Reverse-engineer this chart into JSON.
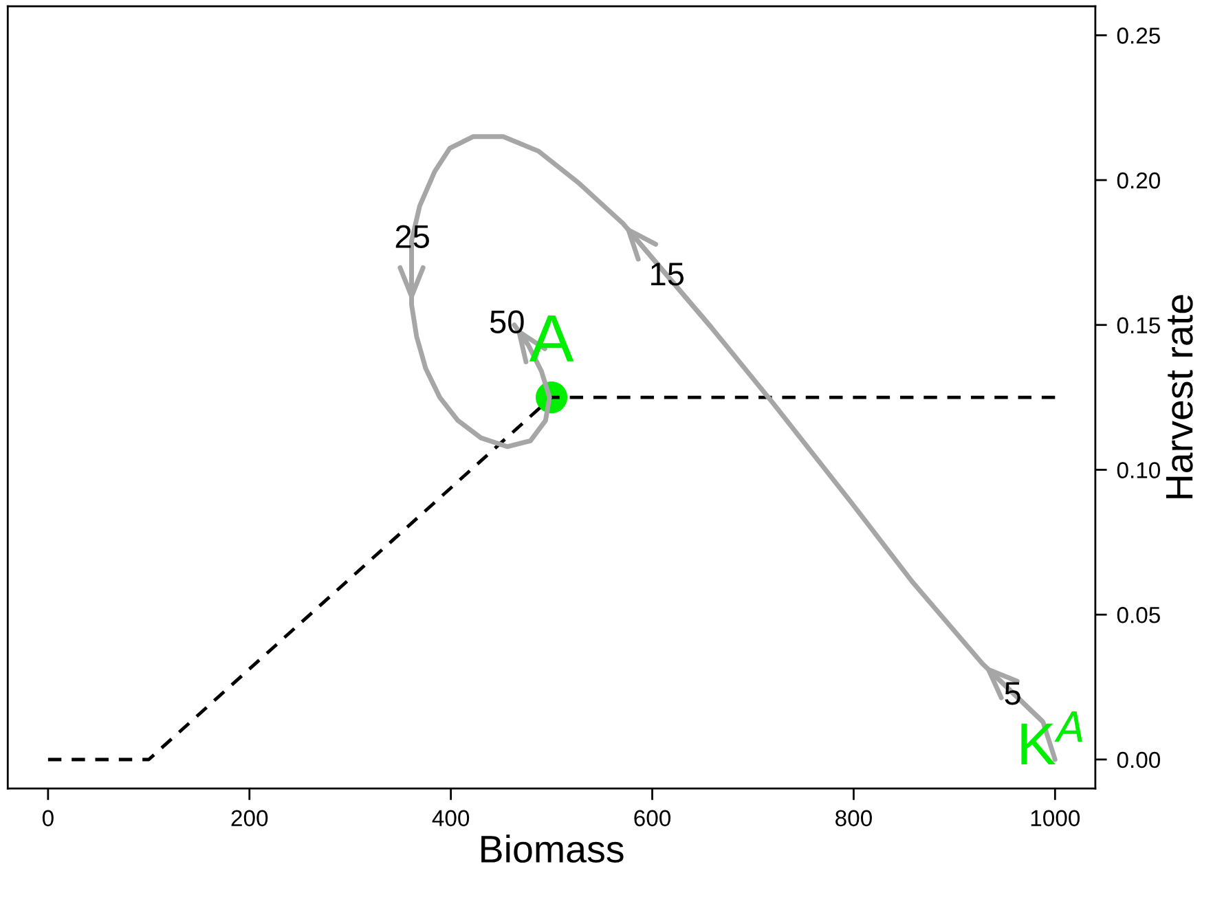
{
  "chart_data": {
    "type": "line",
    "xlabel": "Biomass",
    "y2label": "Harvest rate",
    "xlim": [
      -40,
      1040
    ],
    "ylim": [
      -0.01,
      0.26
    ],
    "xticks": [
      0,
      200,
      400,
      600,
      800,
      1000
    ],
    "yticks": [
      {
        "value": 0,
        "label": "0.00"
      },
      0.05,
      {
        "value": 0.1,
        "label": "0.10"
      },
      0.15,
      {
        "value": 0.2,
        "label": "0.20"
      },
      0.25
    ],
    "series": [
      {
        "line_style": "dashed",
        "color": "#000000",
        "x": [
          0,
          100,
          500,
          1000
        ],
        "values": [
          0,
          0,
          0.125,
          0.125
        ]
      },
      {
        "line_style": "solid",
        "color": "#a6a6a6",
        "x": [
          1000,
          988,
          928,
          859,
          797,
          720,
          659,
          571,
          527,
          487,
          452,
          422,
          399,
          384,
          369,
          361,
          361,
          366,
          375,
          389,
          407,
          430,
          456,
          479,
          494,
          498,
          490,
          477,
          463
        ],
        "values": [
          0,
          0.013,
          0.033,
          0.061,
          0.089,
          0.123,
          0.149,
          0.185,
          0.199,
          0.21,
          0.215,
          0.215,
          0.211,
          0.203,
          0.191,
          0.179,
          0.157,
          0.146,
          0.135,
          0.125,
          0.117,
          0.111,
          0.108,
          0.11,
          0.117,
          0.125,
          0.134,
          0.143,
          0.15
        ]
      },
      {
        "type": "scatter",
        "marker": "circle",
        "color": "#00ee00",
        "x": [
          500
        ],
        "values": [
          0.125
        ]
      }
    ],
    "annotations": [
      "5",
      "15",
      "25",
      "50",
      "A",
      "K$^{A}$"
    ],
    "grid": false
  }
}
